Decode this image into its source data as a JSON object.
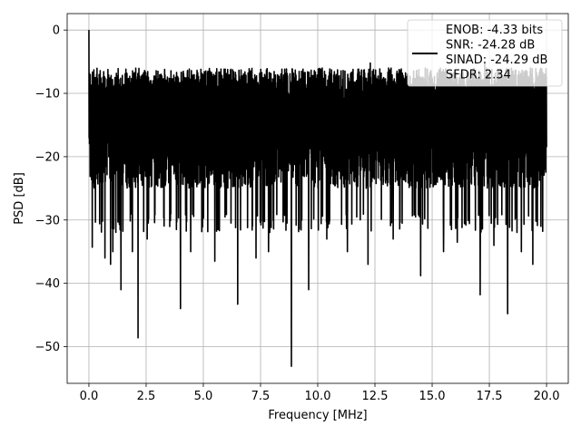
{
  "chart_data": {
    "type": "line",
    "xlabel": "Frequency [MHz]",
    "ylabel": "PSD [dB]",
    "xlim": [
      -0.95,
      20.95
    ],
    "ylim": [
      -55.8,
      2.6
    ],
    "grid": true,
    "legend_position": "top-right",
    "x_ticks": [
      0.0,
      2.5,
      5.0,
      7.5,
      10.0,
      12.5,
      15.0,
      17.5,
      20.0
    ],
    "x_tick_labels": [
      "0.0",
      "2.5",
      "5.0",
      "7.5",
      "10.0",
      "12.5",
      "15.0",
      "17.5",
      "20.0"
    ],
    "y_ticks": [
      0,
      -10,
      -20,
      -30,
      -40,
      -50
    ],
    "y_tick_labels": [
      "0",
      "−10",
      "−20",
      "−30",
      "−40",
      "−50"
    ],
    "line_color": "#000000",
    "legend": {
      "lines": [
        "ENOB: -4.33 bits",
        "SNR: -24.28 dB",
        "SINAD: -24.29 dB",
        "SFDR: 2.34"
      ]
    },
    "series": [
      {
        "x_start": 0.0,
        "x_end": 20.0,
        "baseline_dB": -17,
        "noise_band_dB": [
          -29,
          -8
        ],
        "peaks": [
          {
            "x": 0.0,
            "y": 0.0
          },
          {
            "x": 0.04,
            "y": -10.0
          },
          {
            "x": 0.07,
            "y": -18.0
          }
        ],
        "dips": [
          {
            "x": 0.15,
            "y": -34.3
          },
          {
            "x": 0.7,
            "y": -36.0
          },
          {
            "x": 0.95,
            "y": -37.0
          },
          {
            "x": 1.05,
            "y": -35.0
          },
          {
            "x": 1.4,
            "y": -41.0
          },
          {
            "x": 1.9,
            "y": -35.0
          },
          {
            "x": 2.15,
            "y": -48.6
          },
          {
            "x": 2.55,
            "y": -33.0
          },
          {
            "x": 4.0,
            "y": -44.0
          },
          {
            "x": 4.45,
            "y": -35.0
          },
          {
            "x": 5.5,
            "y": -36.5
          },
          {
            "x": 6.5,
            "y": -43.3
          },
          {
            "x": 7.3,
            "y": -36.0
          },
          {
            "x": 7.85,
            "y": -35.0
          },
          {
            "x": 8.85,
            "y": -53.1
          },
          {
            "x": 9.6,
            "y": -41.0
          },
          {
            "x": 10.4,
            "y": -33.0
          },
          {
            "x": 11.3,
            "y": -35.0
          },
          {
            "x": 12.2,
            "y": -37.0
          },
          {
            "x": 13.3,
            "y": -33.0
          },
          {
            "x": 14.5,
            "y": -38.8
          },
          {
            "x": 15.5,
            "y": -35.0
          },
          {
            "x": 16.1,
            "y": -33.5
          },
          {
            "x": 17.1,
            "y": -41.8
          },
          {
            "x": 17.7,
            "y": -34.0
          },
          {
            "x": 18.3,
            "y": -44.8
          },
          {
            "x": 18.9,
            "y": -35.0
          },
          {
            "x": 19.4,
            "y": -37.0
          }
        ],
        "tops": [
          {
            "x": 2.35,
            "y": -7.5
          },
          {
            "x": 4.3,
            "y": -6.8
          },
          {
            "x": 5.2,
            "y": -6.5
          },
          {
            "x": 8.5,
            "y": -7.5
          },
          {
            "x": 10.2,
            "y": -6.0
          },
          {
            "x": 12.3,
            "y": -5.2
          },
          {
            "x": 13.1,
            "y": -6.0
          },
          {
            "x": 14.7,
            "y": -6.0
          },
          {
            "x": 17.3,
            "y": -5.0
          },
          {
            "x": 19.3,
            "y": -6.0
          }
        ]
      }
    ]
  }
}
